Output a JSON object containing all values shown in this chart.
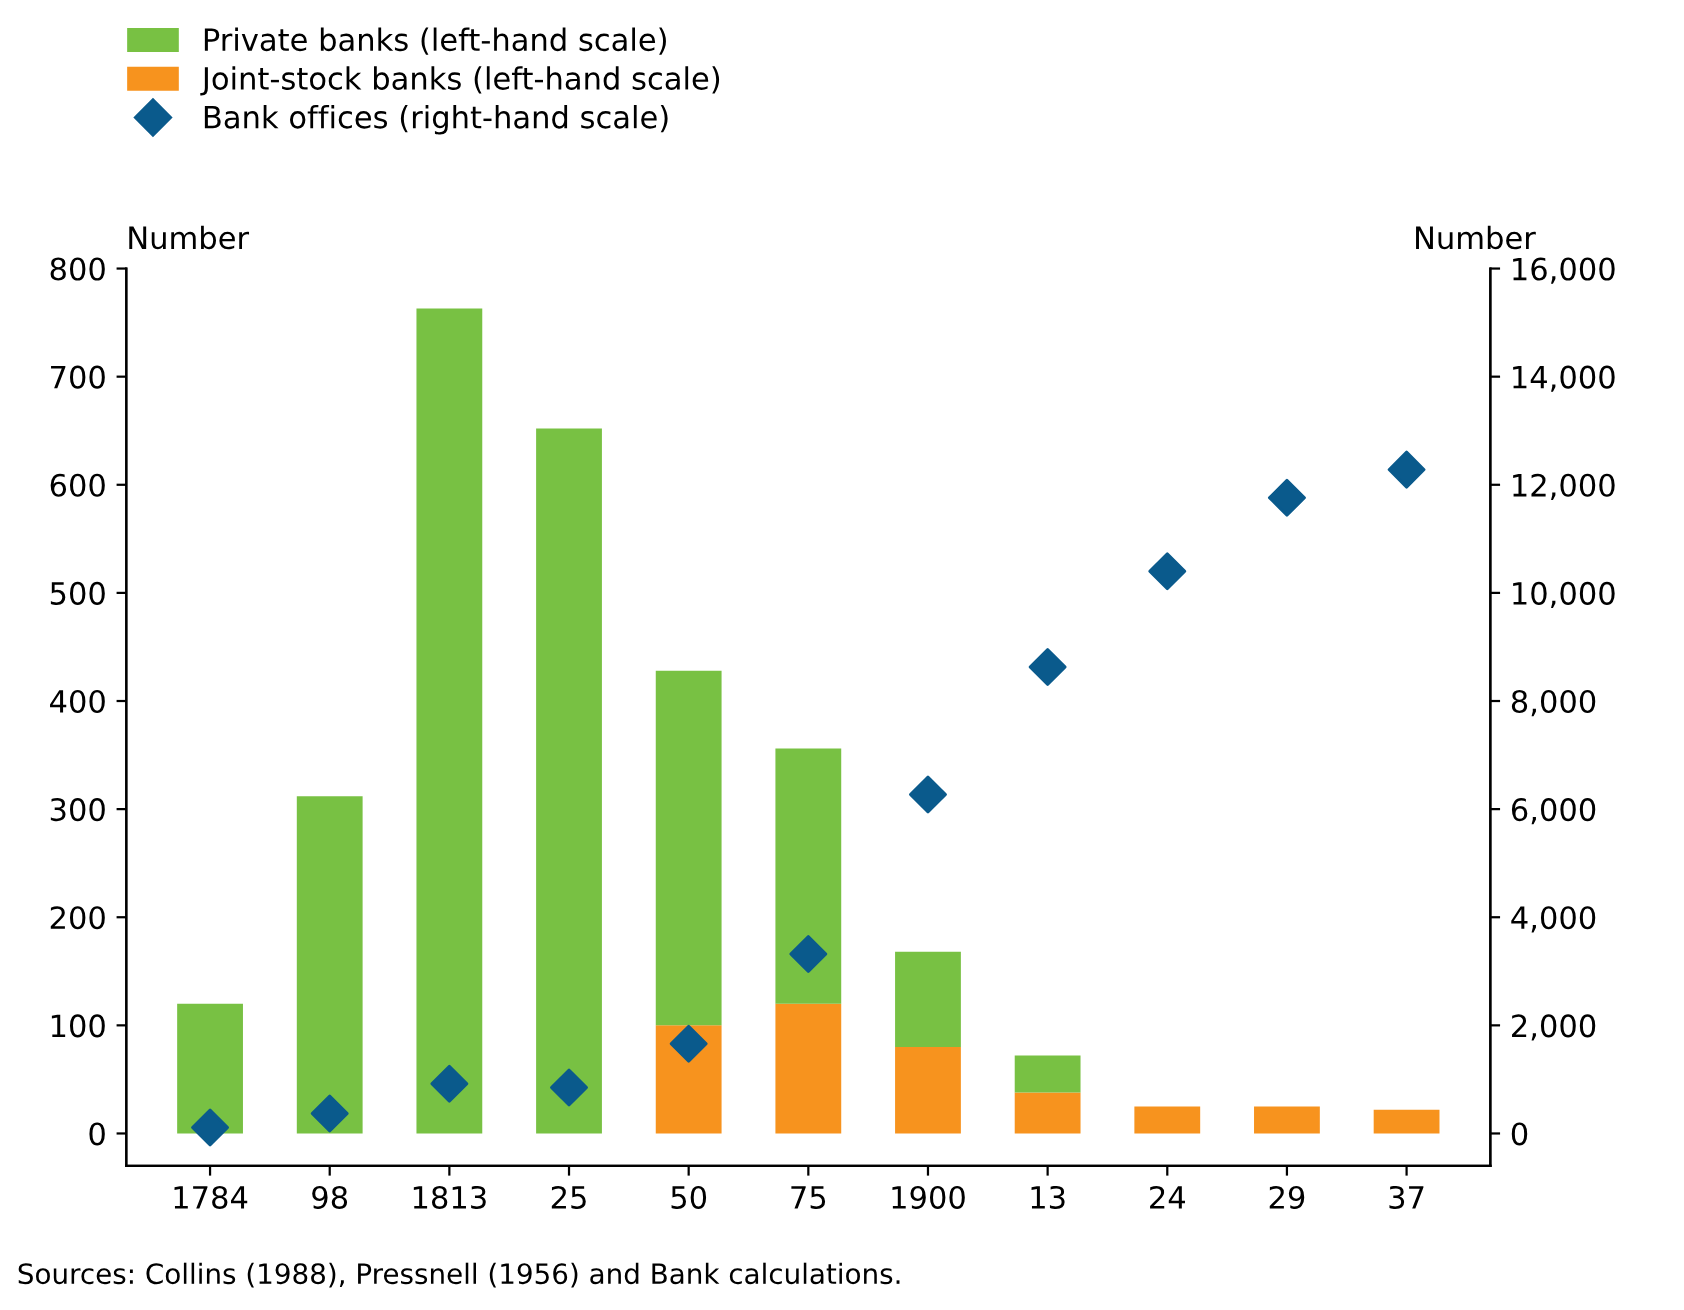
{
  "chart_data": {
    "type": "bar",
    "stacked": true,
    "categories": [
      "1784",
      "98",
      "1813",
      "25",
      "50",
      "75",
      "1900",
      "13",
      "24",
      "29",
      "37"
    ],
    "series": [
      {
        "name": "Joint-stock banks (left-hand scale)",
        "color": "#f7931e",
        "values": [
          0,
          0,
          0,
          0,
          100,
          120,
          80,
          38,
          25,
          25,
          22
        ]
      },
      {
        "name": "Private banks (left-hand scale)",
        "color": "#78c143",
        "values": [
          120,
          312,
          763,
          652,
          328,
          236,
          88,
          34,
          0,
          0,
          0
        ]
      },
      {
        "name": "Bank offices (right-hand scale)",
        "type": "scatter",
        "axis": "y2",
        "marker": "diamond",
        "color": "#0a5a8c",
        "values": [
          110,
          370,
          920,
          850,
          1660,
          3320,
          6270,
          8630,
          10400,
          11760,
          12280
        ]
      }
    ],
    "ylabel": "Number",
    "y2label": "Number",
    "ylim": [
      -30,
      800
    ],
    "yticks": [
      0,
      100,
      200,
      300,
      400,
      500,
      600,
      700,
      800
    ],
    "y2lim": [
      -600,
      16000
    ],
    "y2ticks": [
      {
        "value": 0,
        "label": "0"
      },
      {
        "value": 2000,
        "label": "2,000"
      },
      {
        "value": 4000,
        "label": "4,000"
      },
      {
        "value": 6000,
        "label": "6,000"
      },
      {
        "value": 8000,
        "label": "8,000"
      },
      {
        "value": 10000,
        "label": "10,000"
      },
      {
        "value": 12000,
        "label": "12,000"
      },
      {
        "value": 14000,
        "label": "14,000"
      },
      {
        "value": 16000,
        "label": "16,000"
      }
    ],
    "legend": "top left",
    "grid": false,
    "annotations": [
      "Sources: Collins (1988), Pressnell (1956) and Bank calculations."
    ]
  }
}
